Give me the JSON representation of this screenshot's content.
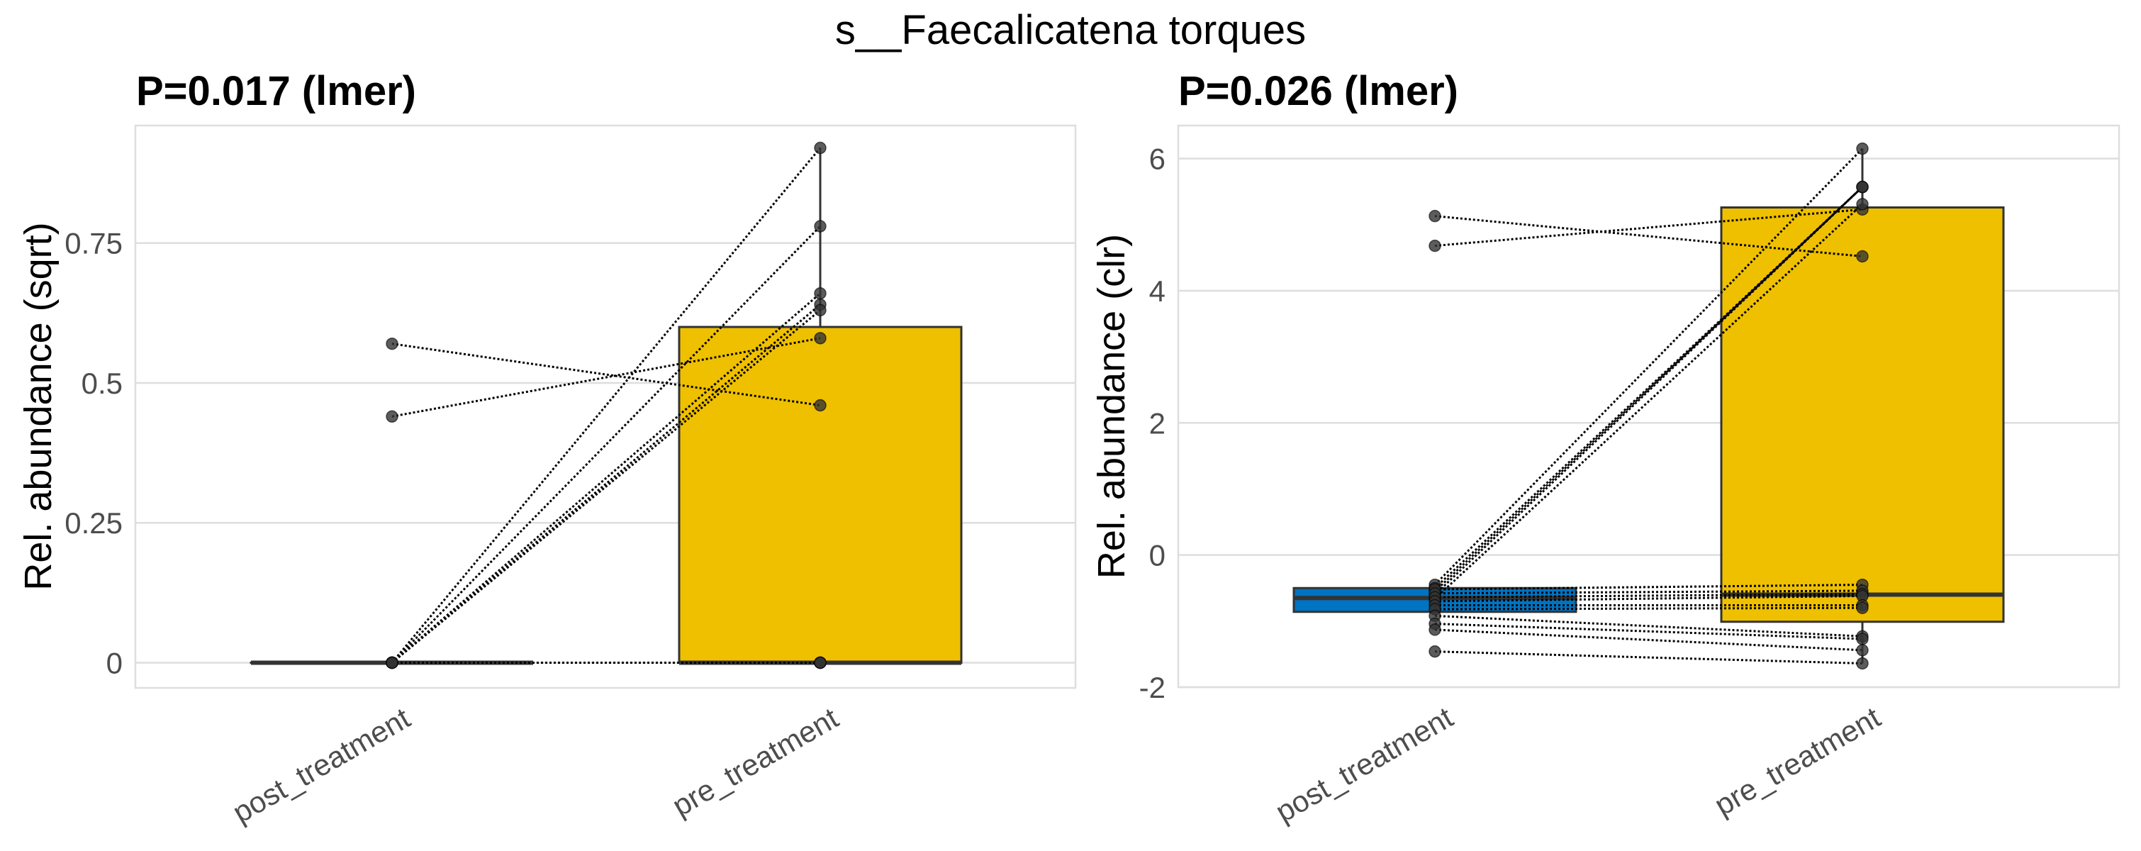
{
  "main_title": "s__Faecalicatena torques",
  "colors": {
    "post_treatment": "#0073C2",
    "pre_treatment": "#EFC000",
    "box_outline": "#333333",
    "grid": "#dedede",
    "point": "#333333"
  },
  "chart_data": [
    {
      "type": "box",
      "title": "P=0.017 (lmer)",
      "xlabel": "",
      "ylabel": "Rel. abundance (sqrt)",
      "categories": [
        "post_treatment",
        "pre_treatment"
      ],
      "ylim": [
        -0.045,
        0.96
      ],
      "yticks": [
        0,
        0.25,
        0.5,
        0.75
      ],
      "ytick_labels": [
        "0",
        "0.25",
        "0.5",
        "0.75"
      ],
      "grid": true,
      "boxes": [
        {
          "category": "post_treatment",
          "q1": 0,
          "median": 0,
          "q3": 0,
          "whisker_low": 0,
          "whisker_high": 0
        },
        {
          "category": "pre_treatment",
          "q1": 0,
          "median": 0,
          "q3": 0.6,
          "whisker_low": 0,
          "whisker_high": 0.92
        }
      ],
      "pairs": [
        {
          "post": 0,
          "pre": 0.92
        },
        {
          "post": 0,
          "pre": 0.78
        },
        {
          "post": 0,
          "pre": 0.66
        },
        {
          "post": 0,
          "pre": 0.64
        },
        {
          "post": 0,
          "pre": 0.63
        },
        {
          "post": 0.57,
          "pre": 0.46
        },
        {
          "post": 0.44,
          "pre": 0.58
        },
        {
          "post": 0,
          "pre": 0
        },
        {
          "post": 0,
          "pre": 0
        },
        {
          "post": 0,
          "pre": 0
        },
        {
          "post": 0,
          "pre": 0
        },
        {
          "post": 0,
          "pre": 0
        }
      ]
    },
    {
      "type": "box",
      "title": "P=0.026 (lmer)",
      "xlabel": "",
      "ylabel": "Rel. abundance (clr)",
      "categories": [
        "post_treatment",
        "pre_treatment"
      ],
      "ylim": [
        -2,
        6.5
      ],
      "yticks": [
        -2,
        0,
        2,
        4,
        6
      ],
      "ytick_labels": [
        "-2",
        "0",
        "2",
        "4",
        "6"
      ],
      "grid": true,
      "boxes": [
        {
          "category": "post_treatment",
          "q1": -0.86,
          "median": -0.65,
          "q3": -0.5,
          "whisker_low": -0.86,
          "whisker_high": -0.5
        },
        {
          "category": "pre_treatment",
          "q1": -1.01,
          "median": -0.6,
          "q3": 5.26,
          "whisker_low": -1.64,
          "whisker_high": 6.15
        }
      ],
      "pairs": [
        {
          "post": 5.13,
          "pre": 4.52
        },
        {
          "post": 4.68,
          "pre": 5.23
        },
        {
          "post": -0.45,
          "pre": 6.15
        },
        {
          "post": -0.5,
          "pre": 5.57
        },
        {
          "post": -0.55,
          "pre": 5.57
        },
        {
          "post": -0.6,
          "pre": 5.57
        },
        {
          "post": -0.66,
          "pre": 5.31
        },
        {
          "post": -0.52,
          "pre": -0.45
        },
        {
          "post": -0.58,
          "pre": -0.54
        },
        {
          "post": -0.64,
          "pre": -0.59
        },
        {
          "post": -0.7,
          "pre": -0.62
        },
        {
          "post": -0.76,
          "pre": -0.76
        },
        {
          "post": -0.82,
          "pre": -0.8
        },
        {
          "post": -0.92,
          "pre": -1.23
        },
        {
          "post": -1.04,
          "pre": -1.27
        },
        {
          "post": -1.13,
          "pre": -1.44
        },
        {
          "post": -1.46,
          "pre": -1.64
        }
      ]
    }
  ]
}
